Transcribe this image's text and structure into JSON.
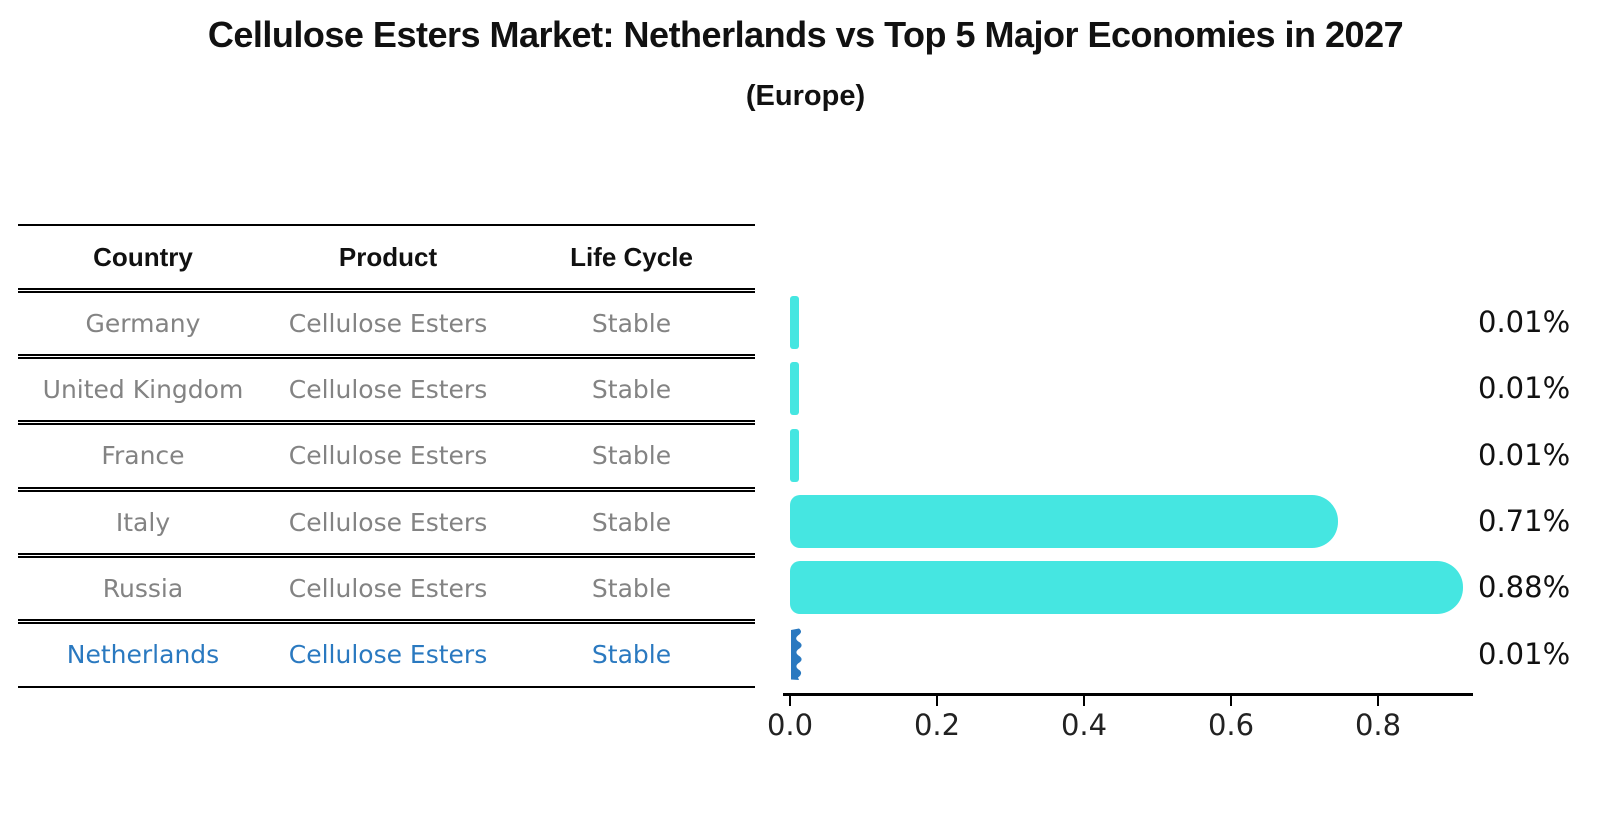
{
  "title": "Cellulose Esters Market: Netherlands vs Top 5 Major Economies in 2027",
  "subtitle": "(Europe)",
  "table": {
    "headers": {
      "country": "Country",
      "product": "Product",
      "life_cycle": "Life Cycle"
    },
    "rows": [
      {
        "country": "Germany",
        "product": "Cellulose Esters",
        "life_cycle": "Stable",
        "highlight": false
      },
      {
        "country": "United Kingdom",
        "product": "Cellulose Esters",
        "life_cycle": "Stable",
        "highlight": false
      },
      {
        "country": "France",
        "product": "Cellulose Esters",
        "life_cycle": "Stable",
        "highlight": false
      },
      {
        "country": "Italy",
        "product": "Cellulose Esters",
        "life_cycle": "Stable",
        "highlight": false
      },
      {
        "country": "Russia",
        "product": "Cellulose Esters",
        "life_cycle": "Stable",
        "highlight": false
      },
      {
        "country": "Netherlands",
        "product": "Cellulose Esters",
        "life_cycle": "Stable",
        "highlight": true
      }
    ]
  },
  "chart_data": {
    "type": "bar",
    "orientation": "horizontal",
    "title": "Cellulose Esters Market: Netherlands vs Top 5 Major Economies in 2027 (Europe)",
    "categories": [
      "Germany",
      "United Kingdom",
      "France",
      "Italy",
      "Russia",
      "Netherlands"
    ],
    "values": [
      0.01,
      0.01,
      0.01,
      0.71,
      0.88,
      0.01
    ],
    "value_labels": [
      "0.01%",
      "0.01%",
      "0.01%",
      "0.71%",
      "0.88%",
      "0.01%"
    ],
    "x_ticks": [
      "0.0",
      "0.2",
      "0.4",
      "0.6",
      "0.8"
    ],
    "xlim": [
      0,
      0.93
    ],
    "xlabel": "",
    "ylabel": "",
    "grid": false,
    "legend": "none",
    "bar_color": "#45e6e1",
    "highlight_color": "#2a79c0",
    "highlight_index": 5
  },
  "colors": {
    "bar_teal": "#45e6e1",
    "highlight_blue": "#2a79c0",
    "row_text_gray": "#838383",
    "text_black": "#111111"
  }
}
